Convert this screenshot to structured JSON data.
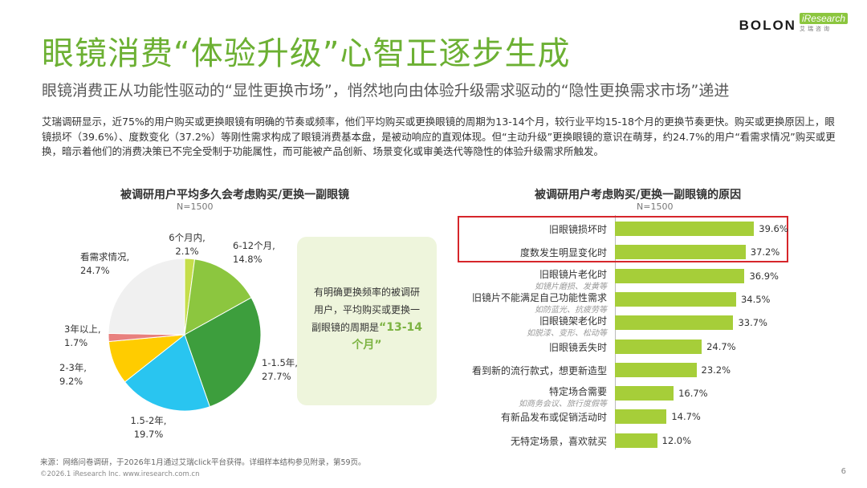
{
  "logo": {
    "brand": "BOLON",
    "partner": "iResearch",
    "partner_sub": "艾瑞咨询"
  },
  "title": "眼镜消费“体验升级”心智正逐步生成",
  "subtitle": "眼镜消费正从功能性驱动的“显性更换市场”，悄然地向由体验升级需求驱动的“隐性更换需求市场”递进",
  "summary": "艾瑞调研显示，近75%的用户购买或更换眼镜有明确的节奏或频率，他们平均购买或更换眼镜的周期为13-14个月，较行业平均15-18个月的更换节奏更快。购买或更换原因上，眼镜损坏（39.6%）、度数变化（37.2%）等刚性需求构成了眼镜消费基本盘，是被动响应的直观体现。但“主动升级”更换眼镜的意识在萌芽，约24.7%的用户“看需求情况”购买或更换，暗示着他们的消费决策已不完全受制于功能属性，而可能被产品创新、场景变化或审美迭代等隐性的体验升级需求所触发。",
  "callout": {
    "text": "有明确更换频率的被调研用户，平均购买或更换一副眼镜的周期是",
    "highlight": "“13-14个月”"
  },
  "chart_data": [
    {
      "type": "pie",
      "title": "被调研用户平均多久会考虑购买/更换一副眼镜",
      "note": "N=1500",
      "slices": [
        {
          "name": "6个月内,",
          "value": 2.1,
          "label": "2.1%",
          "color": "#c5de4a"
        },
        {
          "name": "6-12个月,",
          "value": 14.8,
          "label": "14.8%",
          "color": "#8cc63f"
        },
        {
          "name": "1-1.5年,",
          "value": 27.7,
          "label": "27.7%",
          "color": "#3d9e3d"
        },
        {
          "name": "1.5-2年,",
          "value": 19.7,
          "label": "19.7%",
          "color": "#29c5f0"
        },
        {
          "name": "2-3年,",
          "value": 9.2,
          "label": "9.2%",
          "color": "#ffcc00"
        },
        {
          "name": "3年以上,",
          "value": 1.7,
          "label": "1.7%",
          "color": "#e8807e"
        },
        {
          "name": "看需求情况,",
          "value": 24.7,
          "label": "24.7%",
          "color": "#f0f0f0"
        }
      ]
    },
    {
      "type": "bar",
      "orientation": "horizontal",
      "title": "被调研用户考虑购买/更换一副眼镜的原因",
      "note": "N=1500",
      "xlim": [
        0,
        40
      ],
      "bars": [
        {
          "label": "旧眼镜损坏时",
          "sub": "",
          "value": 39.6,
          "value_label": "39.6%"
        },
        {
          "label": "度数发生明显变化时",
          "sub": "",
          "value": 37.2,
          "value_label": "37.2%"
        },
        {
          "label": "旧眼镜片老化时",
          "sub": "如镜片磨损、发黄等",
          "value": 36.9,
          "value_label": "36.9%"
        },
        {
          "label": "旧镜片不能满足自己功能性需求",
          "sub": "如防蓝光、抗疲劳等",
          "value": 34.5,
          "value_label": "34.5%"
        },
        {
          "label": "旧眼镜架老化时",
          "sub": "如脱漆、变形、松动等",
          "value": 33.7,
          "value_label": "33.7%"
        },
        {
          "label": "旧眼镜丢失时",
          "sub": "",
          "value": 24.7,
          "value_label": "24.7%"
        },
        {
          "label": "看到新的流行款式，想更新造型",
          "sub": "",
          "value": 23.2,
          "value_label": "23.2%"
        },
        {
          "label": "特定场合需要",
          "sub": "如商务会议、旅行度假等",
          "value": 16.7,
          "value_label": "16.7%"
        },
        {
          "label": "有新品发布或促销活动时",
          "sub": "",
          "value": 14.7,
          "value_label": "14.7%"
        },
        {
          "label": "无特定场景，喜欢就买",
          "sub": "",
          "value": 12.0,
          "value_label": "12.0%"
        }
      ],
      "bar_color": "#a6ce39",
      "highlight_color": "#d6262b"
    }
  ],
  "footer": {
    "source": "来源：网络问卷调研，于2026年1月通过艾瑞click平台获得。详细样本结构参见附录，第59页。",
    "copyright": "©2026.1 iResearch Inc. www.iresearch.com.cn",
    "page": "6"
  }
}
